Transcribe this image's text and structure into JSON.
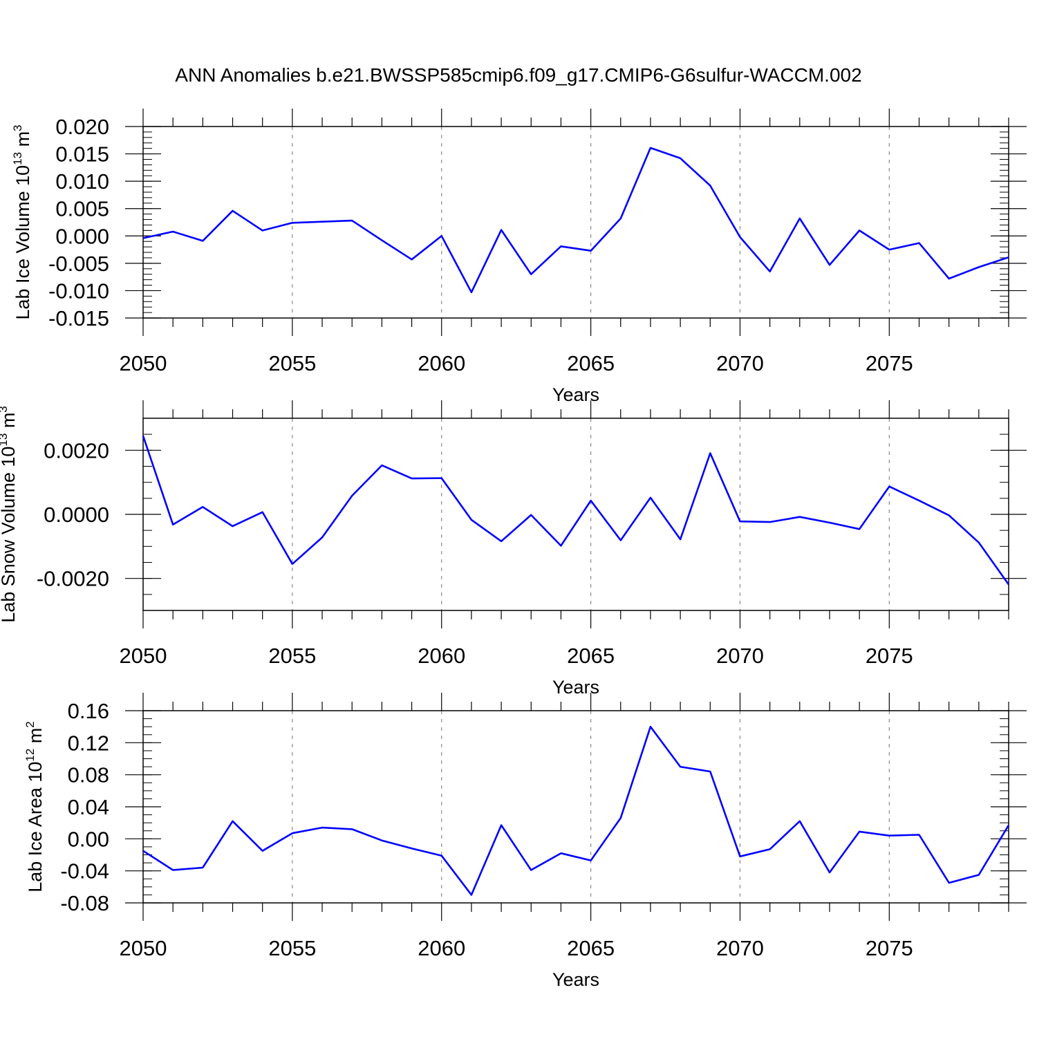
{
  "title": "ANN Anomalies b.e21.BWSSP585cmip6.f09_g17.CMIP6-G6sulfur-WACCM.002",
  "line_color": "#0000ff",
  "grid_color": "#888888",
  "chart_data": [
    {
      "type": "line",
      "xlabel": "Years",
      "ylabel_text": "Lab Ice Volume 10",
      "ylabel_exp": "13",
      "ylabel_unit": " m",
      "ylabel_unit_exp": "3",
      "xlim": [
        2050,
        2079
      ],
      "ylim": [
        -0.015,
        0.02
      ],
      "xticks": [
        2050,
        2055,
        2060,
        2065,
        2070,
        2075
      ],
      "xtick_labels": [
        "2050",
        "2055",
        "2060",
        "2065",
        "2070",
        "2075"
      ],
      "yticks": [
        -0.015,
        -0.01,
        -0.005,
        0.0,
        0.005,
        0.01,
        0.015,
        0.02
      ],
      "ytick_labels": [
        "-0.015",
        "-0.010",
        "-0.005",
        "0.000",
        "0.005",
        "0.010",
        "0.015",
        "0.020"
      ],
      "yminor_step": 0.001,
      "x": [
        2050,
        2051,
        2052,
        2053,
        2054,
        2055,
        2056,
        2057,
        2058,
        2059,
        2060,
        2061,
        2062,
        2063,
        2064,
        2065,
        2066,
        2067,
        2068,
        2069,
        2070,
        2071,
        2072,
        2073,
        2074,
        2075,
        2076,
        2077,
        2078,
        2079
      ],
      "y": [
        -0.0004,
        0.0008,
        -0.0009,
        0.0046,
        0.001,
        0.0024,
        0.0026,
        0.0028,
        -0.0008,
        -0.0043,
        0.0,
        -0.0103,
        0.0011,
        -0.007,
        -0.0019,
        -0.0027,
        0.0032,
        0.0161,
        0.0142,
        0.0092,
        -0.0002,
        -0.0065,
        0.0032,
        -0.0053,
        0.001,
        -0.0025,
        -0.0013,
        -0.0078,
        -0.0057,
        -0.0039
      ]
    },
    {
      "type": "line",
      "xlabel": "Years",
      "ylabel_text": "Lab Snow Volume 10",
      "ylabel_exp": "13",
      "ylabel_unit": " m",
      "ylabel_unit_exp": "3",
      "xlim": [
        2050,
        2079
      ],
      "ylim": [
        -0.003,
        0.003
      ],
      "xticks": [
        2050,
        2055,
        2060,
        2065,
        2070,
        2075
      ],
      "xtick_labels": [
        "2050",
        "2055",
        "2060",
        "2065",
        "2070",
        "2075"
      ],
      "yticks": [
        -0.002,
        0.0,
        0.002
      ],
      "ytick_labels": [
        "-0.0020",
        "0.0000",
        "0.0020"
      ],
      "yminor_step": 0.0005,
      "x": [
        2050,
        2051,
        2052,
        2053,
        2054,
        2055,
        2056,
        2057,
        2058,
        2059,
        2060,
        2061,
        2062,
        2063,
        2064,
        2065,
        2066,
        2067,
        2068,
        2069,
        2070,
        2071,
        2072,
        2073,
        2074,
        2075,
        2076,
        2077,
        2078,
        2079
      ],
      "y": [
        0.00245,
        -0.00032,
        0.00023,
        -0.00037,
        7e-05,
        -0.00155,
        -0.00072,
        0.00058,
        0.00153,
        0.00112,
        0.00113,
        -0.00017,
        -0.00084,
        -2e-05,
        -0.00098,
        0.00043,
        -0.00081,
        0.00052,
        -0.00078,
        0.00191,
        -0.00022,
        -0.00024,
        -8e-05,
        -0.00026,
        -0.00046,
        0.00087,
        0.00043,
        -3e-05,
        -0.00088,
        -0.00219
      ]
    },
    {
      "type": "line",
      "xlabel": "Years",
      "ylabel_text": "Lab Ice Area 10",
      "ylabel_exp": "12",
      "ylabel_unit": " m",
      "ylabel_unit_exp": "2",
      "xlim": [
        2050,
        2079
      ],
      "ylim": [
        -0.08,
        0.16
      ],
      "xticks": [
        2050,
        2055,
        2060,
        2065,
        2070,
        2075
      ],
      "xtick_labels": [
        "2050",
        "2055",
        "2060",
        "2065",
        "2070",
        "2075"
      ],
      "yticks": [
        -0.08,
        -0.04,
        0.0,
        0.04,
        0.08,
        0.12,
        0.16
      ],
      "ytick_labels": [
        "-0.08",
        "-0.04",
        "0.00",
        "0.04",
        "0.08",
        "0.12",
        "0.16"
      ],
      "yminor_step": 0.01,
      "x": [
        2050,
        2051,
        2052,
        2053,
        2054,
        2055,
        2056,
        2057,
        2058,
        2059,
        2060,
        2061,
        2062,
        2063,
        2064,
        2065,
        2066,
        2067,
        2068,
        2069,
        2070,
        2071,
        2072,
        2073,
        2074,
        2075,
        2076,
        2077,
        2078,
        2079
      ],
      "y": [
        -0.015,
        -0.039,
        -0.036,
        0.022,
        -0.015,
        0.007,
        0.014,
        0.012,
        -0.002,
        -0.012,
        -0.021,
        -0.07,
        0.017,
        -0.039,
        -0.018,
        -0.027,
        0.026,
        0.14,
        0.09,
        0.084,
        -0.022,
        -0.013,
        0.022,
        -0.042,
        0.009,
        0.004,
        0.005,
        -0.055,
        -0.045,
        0.017
      ]
    }
  ]
}
